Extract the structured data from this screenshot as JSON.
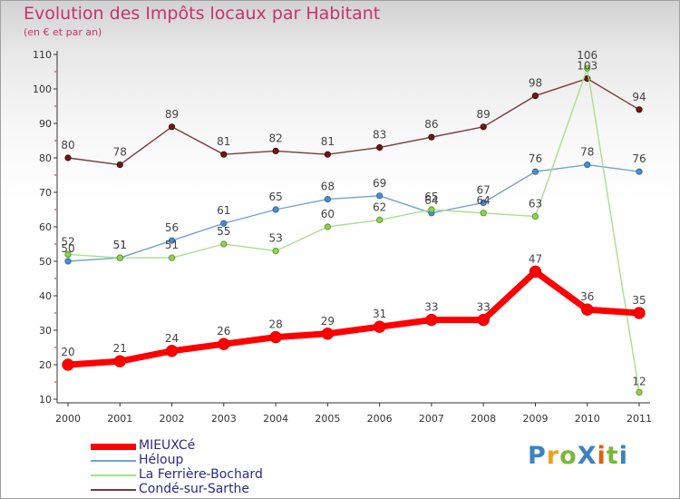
{
  "title": "Evolution des Impôts locaux par Habitant",
  "subtitle": "(en € et par an)",
  "logo": {
    "text": "ProXiti",
    "letters": [
      {
        "ch": "P",
        "color": "#3b82c4"
      },
      {
        "ch": "r",
        "color": "#f0a020"
      },
      {
        "ch": "o",
        "color": "#7cb83a"
      },
      {
        "ch": "X",
        "color": "#3b82c4"
      },
      {
        "ch": "i",
        "color": "#e06010"
      },
      {
        "ch": "t",
        "color": "#7cb83a"
      },
      {
        "ch": "i",
        "color": "#3b82c4"
      }
    ]
  },
  "chart_data": {
    "type": "line",
    "title": "Evolution des Impôts locaux par Habitant",
    "subtitle": "(en € et par an)",
    "xlabel": "",
    "ylabel": "",
    "x": [
      "2000",
      "2001",
      "2002",
      "2003",
      "2004",
      "2005",
      "2006",
      "2007",
      "2008",
      "2009",
      "2010",
      "2011"
    ],
    "yticks": [
      "10",
      "20",
      "30",
      "40",
      "50",
      "60",
      "70",
      "80",
      "90",
      "100",
      "110"
    ],
    "ylim": [
      10,
      110
    ],
    "grid": false,
    "legend_position": "bottom-left",
    "series": [
      {
        "name": "MIEUXCé",
        "color": "#ff0000",
        "marker_fill": "#ff0000",
        "marker_stroke": "#b80000",
        "values": [
          20,
          21,
          24,
          26,
          28,
          29,
          31,
          33,
          33,
          47,
          36,
          35
        ],
        "labels": [
          "20",
          "21",
          "24",
          "26",
          "28",
          "29",
          "31",
          "33",
          "33",
          "47",
          "36",
          "35"
        ]
      },
      {
        "name": "Héloup",
        "color": "#6fa3d3",
        "marker_fill": "#4a8ccc",
        "marker_stroke": "#2a5f9a",
        "values": [
          50,
          51,
          56,
          61,
          65,
          68,
          69,
          64,
          67,
          76,
          78,
          76
        ],
        "labels": [
          "50",
          "51",
          "56",
          "61",
          "65",
          "68",
          "69",
          "64",
          "67",
          "76",
          "78",
          "76"
        ]
      },
      {
        "name": "La Ferrière-Bochard",
        "color": "#a8e08a",
        "marker_fill": "#8ed250",
        "marker_stroke": "#4f8a20",
        "values": [
          52,
          51,
          51,
          55,
          53,
          60,
          62,
          65,
          64,
          63,
          106,
          12
        ],
        "labels": [
          "52",
          "51",
          "51",
          "55",
          "53",
          "60",
          "62",
          "65",
          "64",
          "63",
          "106",
          "12"
        ]
      },
      {
        "name": "Condé-sur-Sarthe",
        "color": "#7a3a3a",
        "marker_fill": "#6a1818",
        "marker_stroke": "#3a0808",
        "values": [
          80,
          78,
          89,
          81,
          82,
          81,
          83,
          86,
          89,
          98,
          103,
          94
        ],
        "labels": [
          "80",
          "78",
          "89",
          "81",
          "82",
          "81",
          "83",
          "86",
          "89",
          "98",
          "103",
          "94"
        ]
      }
    ]
  }
}
